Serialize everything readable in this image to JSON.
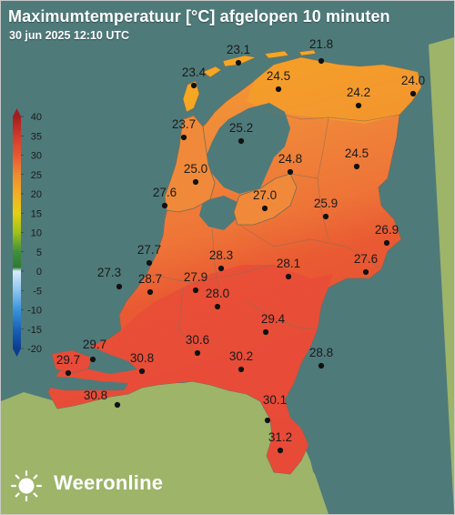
{
  "title": "Maximumtemperatuur [°C] afgelopen 10 minuten",
  "subtitle": "30 jun 2025 12:10 UTC",
  "brand": {
    "name": "Weeronline",
    "logo_icon": "sun-logo-icon"
  },
  "colors": {
    "sea": "#4f7a7a",
    "foreign_land": "#9db469",
    "hot_red": "#e84b3a",
    "warm_orange": "#f08a3a",
    "yellow_orange": "#f5a623",
    "station_dot": "#111111",
    "title_text": "#ffffff"
  },
  "scale": {
    "labels": [
      "40",
      "35",
      "30",
      "25",
      "20",
      "15",
      "10",
      "5",
      "0",
      "-5",
      "-10",
      "-15",
      "-20"
    ],
    "stops": [
      {
        "value": 40,
        "color": "#a21d1f"
      },
      {
        "value": 35,
        "color": "#d23a2b"
      },
      {
        "value": 30,
        "color": "#e8572f"
      },
      {
        "value": 25,
        "color": "#f08a33"
      },
      {
        "value": 20,
        "color": "#f3ad23"
      },
      {
        "value": 15,
        "color": "#e6cf14"
      },
      {
        "value": 10,
        "color": "#9ec21a"
      },
      {
        "value": 5,
        "color": "#3f8f3a"
      },
      {
        "value": 1,
        "color": "#2f7a34"
      },
      {
        "value": 0,
        "color": "#d6ecfb"
      },
      {
        "value": -5,
        "color": "#8dc4ee"
      },
      {
        "value": -10,
        "color": "#3a93dc"
      },
      {
        "value": -15,
        "color": "#1a62b8"
      },
      {
        "value": -20,
        "color": "#0b3d8f"
      }
    ]
  },
  "stations": [
    {
      "value": "23.1"
    },
    {
      "value": "21.8"
    },
    {
      "value": "23.4"
    },
    {
      "value": "24.5"
    },
    {
      "value": "24.0"
    },
    {
      "value": "24.2"
    },
    {
      "value": "23.7"
    },
    {
      "value": "25.2"
    },
    {
      "value": "24.8"
    },
    {
      "value": "24.5"
    },
    {
      "value": "25.0"
    },
    {
      "value": "27.6"
    },
    {
      "value": "27.0"
    },
    {
      "value": "25.9"
    },
    {
      "value": "26.9"
    },
    {
      "value": "27.7"
    },
    {
      "value": "28.3"
    },
    {
      "value": "28.1"
    },
    {
      "value": "27.6"
    },
    {
      "value": "27.3"
    },
    {
      "value": "28.7"
    },
    {
      "value": "27.9"
    },
    {
      "value": "28.0"
    },
    {
      "value": "29.4"
    },
    {
      "value": "29.7"
    },
    {
      "value": "30.6"
    },
    {
      "value": "28.8"
    },
    {
      "value": "29.7"
    },
    {
      "value": "30.8"
    },
    {
      "value": "30.2"
    },
    {
      "value": "30.8"
    },
    {
      "value": "30.1"
    },
    {
      "value": "31.2"
    }
  ]
}
